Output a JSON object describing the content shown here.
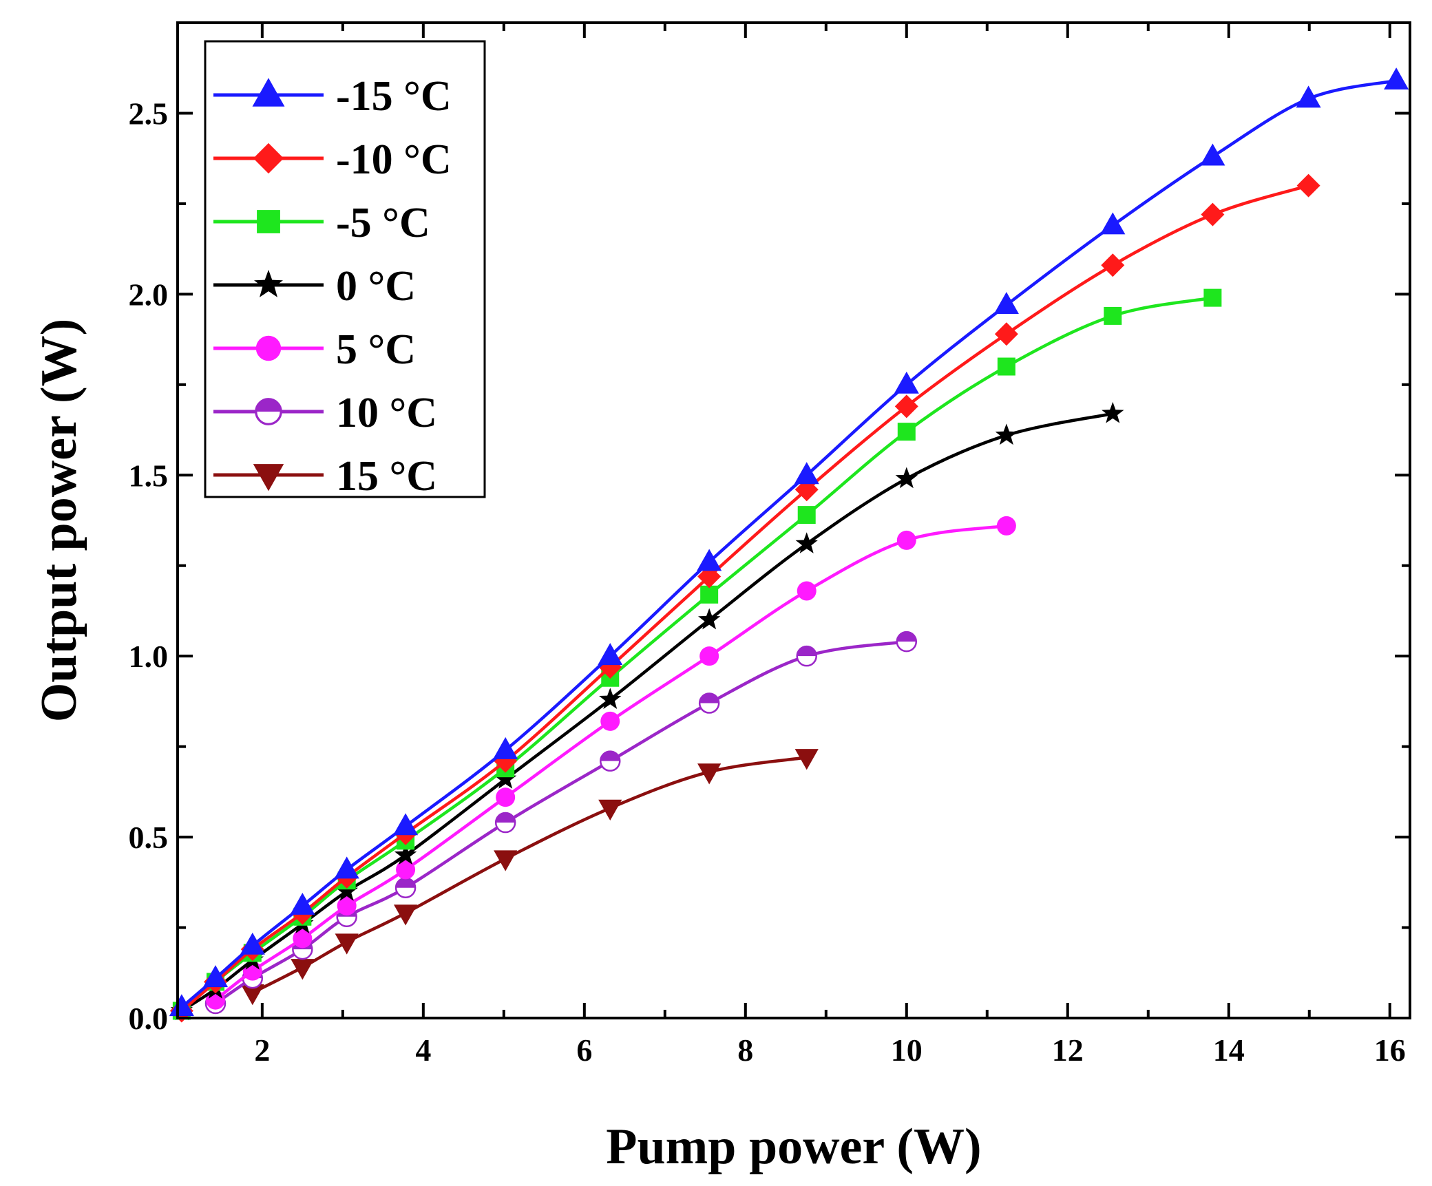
{
  "chart_data": {
    "type": "line",
    "title": "",
    "xlabel": "Pump power (W)",
    "ylabel": "Output power (W)",
    "xlim": [
      0.95,
      16.25
    ],
    "ylim": [
      0.0,
      2.75
    ],
    "xticks": [
      2,
      4,
      6,
      8,
      10,
      12,
      14,
      16
    ],
    "xtick_labels": [
      "2",
      "4",
      "6",
      "8",
      "10",
      "12",
      "14",
      "16"
    ],
    "yticks": [
      0.0,
      0.5,
      1.0,
      1.5,
      2.0,
      2.5
    ],
    "ytick_labels": [
      "0.0",
      "0.5",
      "1.0",
      "1.5",
      "2.0",
      "2.5"
    ],
    "grid": false,
    "legend_position": "top-left",
    "series": [
      {
        "name": "-15 °C",
        "color": "#1a1aff",
        "marker": "triangle-up",
        "x": [
          1.0,
          1.42,
          1.88,
          2.5,
          3.05,
          3.78,
          5.02,
          6.32,
          7.55,
          8.76,
          10.0,
          11.24,
          12.56,
          13.8,
          14.99,
          16.08
        ],
        "y": [
          0.03,
          0.11,
          0.2,
          0.31,
          0.41,
          0.53,
          0.74,
          1.0,
          1.26,
          1.5,
          1.75,
          1.97,
          2.19,
          2.38,
          2.54,
          2.59
        ]
      },
      {
        "name": "-10 °C",
        "color": "#ff1a1a",
        "marker": "diamond",
        "x": [
          1.0,
          1.42,
          1.88,
          2.5,
          3.05,
          3.78,
          5.02,
          6.32,
          7.55,
          8.76,
          10.0,
          11.24,
          12.56,
          13.8,
          14.99
        ],
        "y": [
          0.02,
          0.1,
          0.19,
          0.29,
          0.39,
          0.51,
          0.71,
          0.97,
          1.22,
          1.46,
          1.69,
          1.89,
          2.08,
          2.22,
          2.3
        ]
      },
      {
        "name": "-5 °C",
        "color": "#1ee61e",
        "marker": "square",
        "x": [
          1.0,
          1.42,
          1.88,
          2.5,
          3.05,
          3.78,
          5.02,
          6.32,
          7.55,
          8.76,
          10.0,
          11.24,
          12.56,
          13.8
        ],
        "y": [
          0.02,
          0.1,
          0.18,
          0.28,
          0.38,
          0.49,
          0.69,
          0.94,
          1.17,
          1.39,
          1.62,
          1.8,
          1.94,
          1.99
        ]
      },
      {
        "name": "0 °C",
        "color": "#000000",
        "marker": "star",
        "x": [
          1.0,
          1.42,
          1.88,
          2.5,
          3.05,
          3.78,
          5.02,
          6.32,
          7.55,
          8.76,
          10.0,
          11.24,
          12.56
        ],
        "y": [
          0.02,
          0.08,
          0.16,
          0.26,
          0.35,
          0.45,
          0.66,
          0.88,
          1.1,
          1.31,
          1.49,
          1.61,
          1.67
        ]
      },
      {
        "name": "5 °C",
        "color": "#ff1aff",
        "marker": "circle",
        "x": [
          1.42,
          1.88,
          2.5,
          3.05,
          3.78,
          5.02,
          6.32,
          7.55,
          8.76,
          10.0,
          11.24
        ],
        "y": [
          0.05,
          0.13,
          0.22,
          0.31,
          0.41,
          0.61,
          0.82,
          1.0,
          1.18,
          1.32,
          1.36
        ]
      },
      {
        "name": "10 °C",
        "color": "#9b26c8",
        "marker": "half-circle",
        "x": [
          1.42,
          1.88,
          2.5,
          3.05,
          3.78,
          5.02,
          6.32,
          7.55,
          8.76,
          10.0
        ],
        "y": [
          0.04,
          0.11,
          0.19,
          0.28,
          0.36,
          0.54,
          0.71,
          0.87,
          1.0,
          1.04
        ]
      },
      {
        "name": "15 °C",
        "color": "#8b0f0f",
        "marker": "triangle-down",
        "x": [
          1.88,
          2.5,
          3.05,
          3.78,
          5.02,
          6.32,
          7.55,
          8.76
        ],
        "y": [
          0.07,
          0.14,
          0.21,
          0.29,
          0.44,
          0.58,
          0.68,
          0.72
        ]
      }
    ]
  }
}
